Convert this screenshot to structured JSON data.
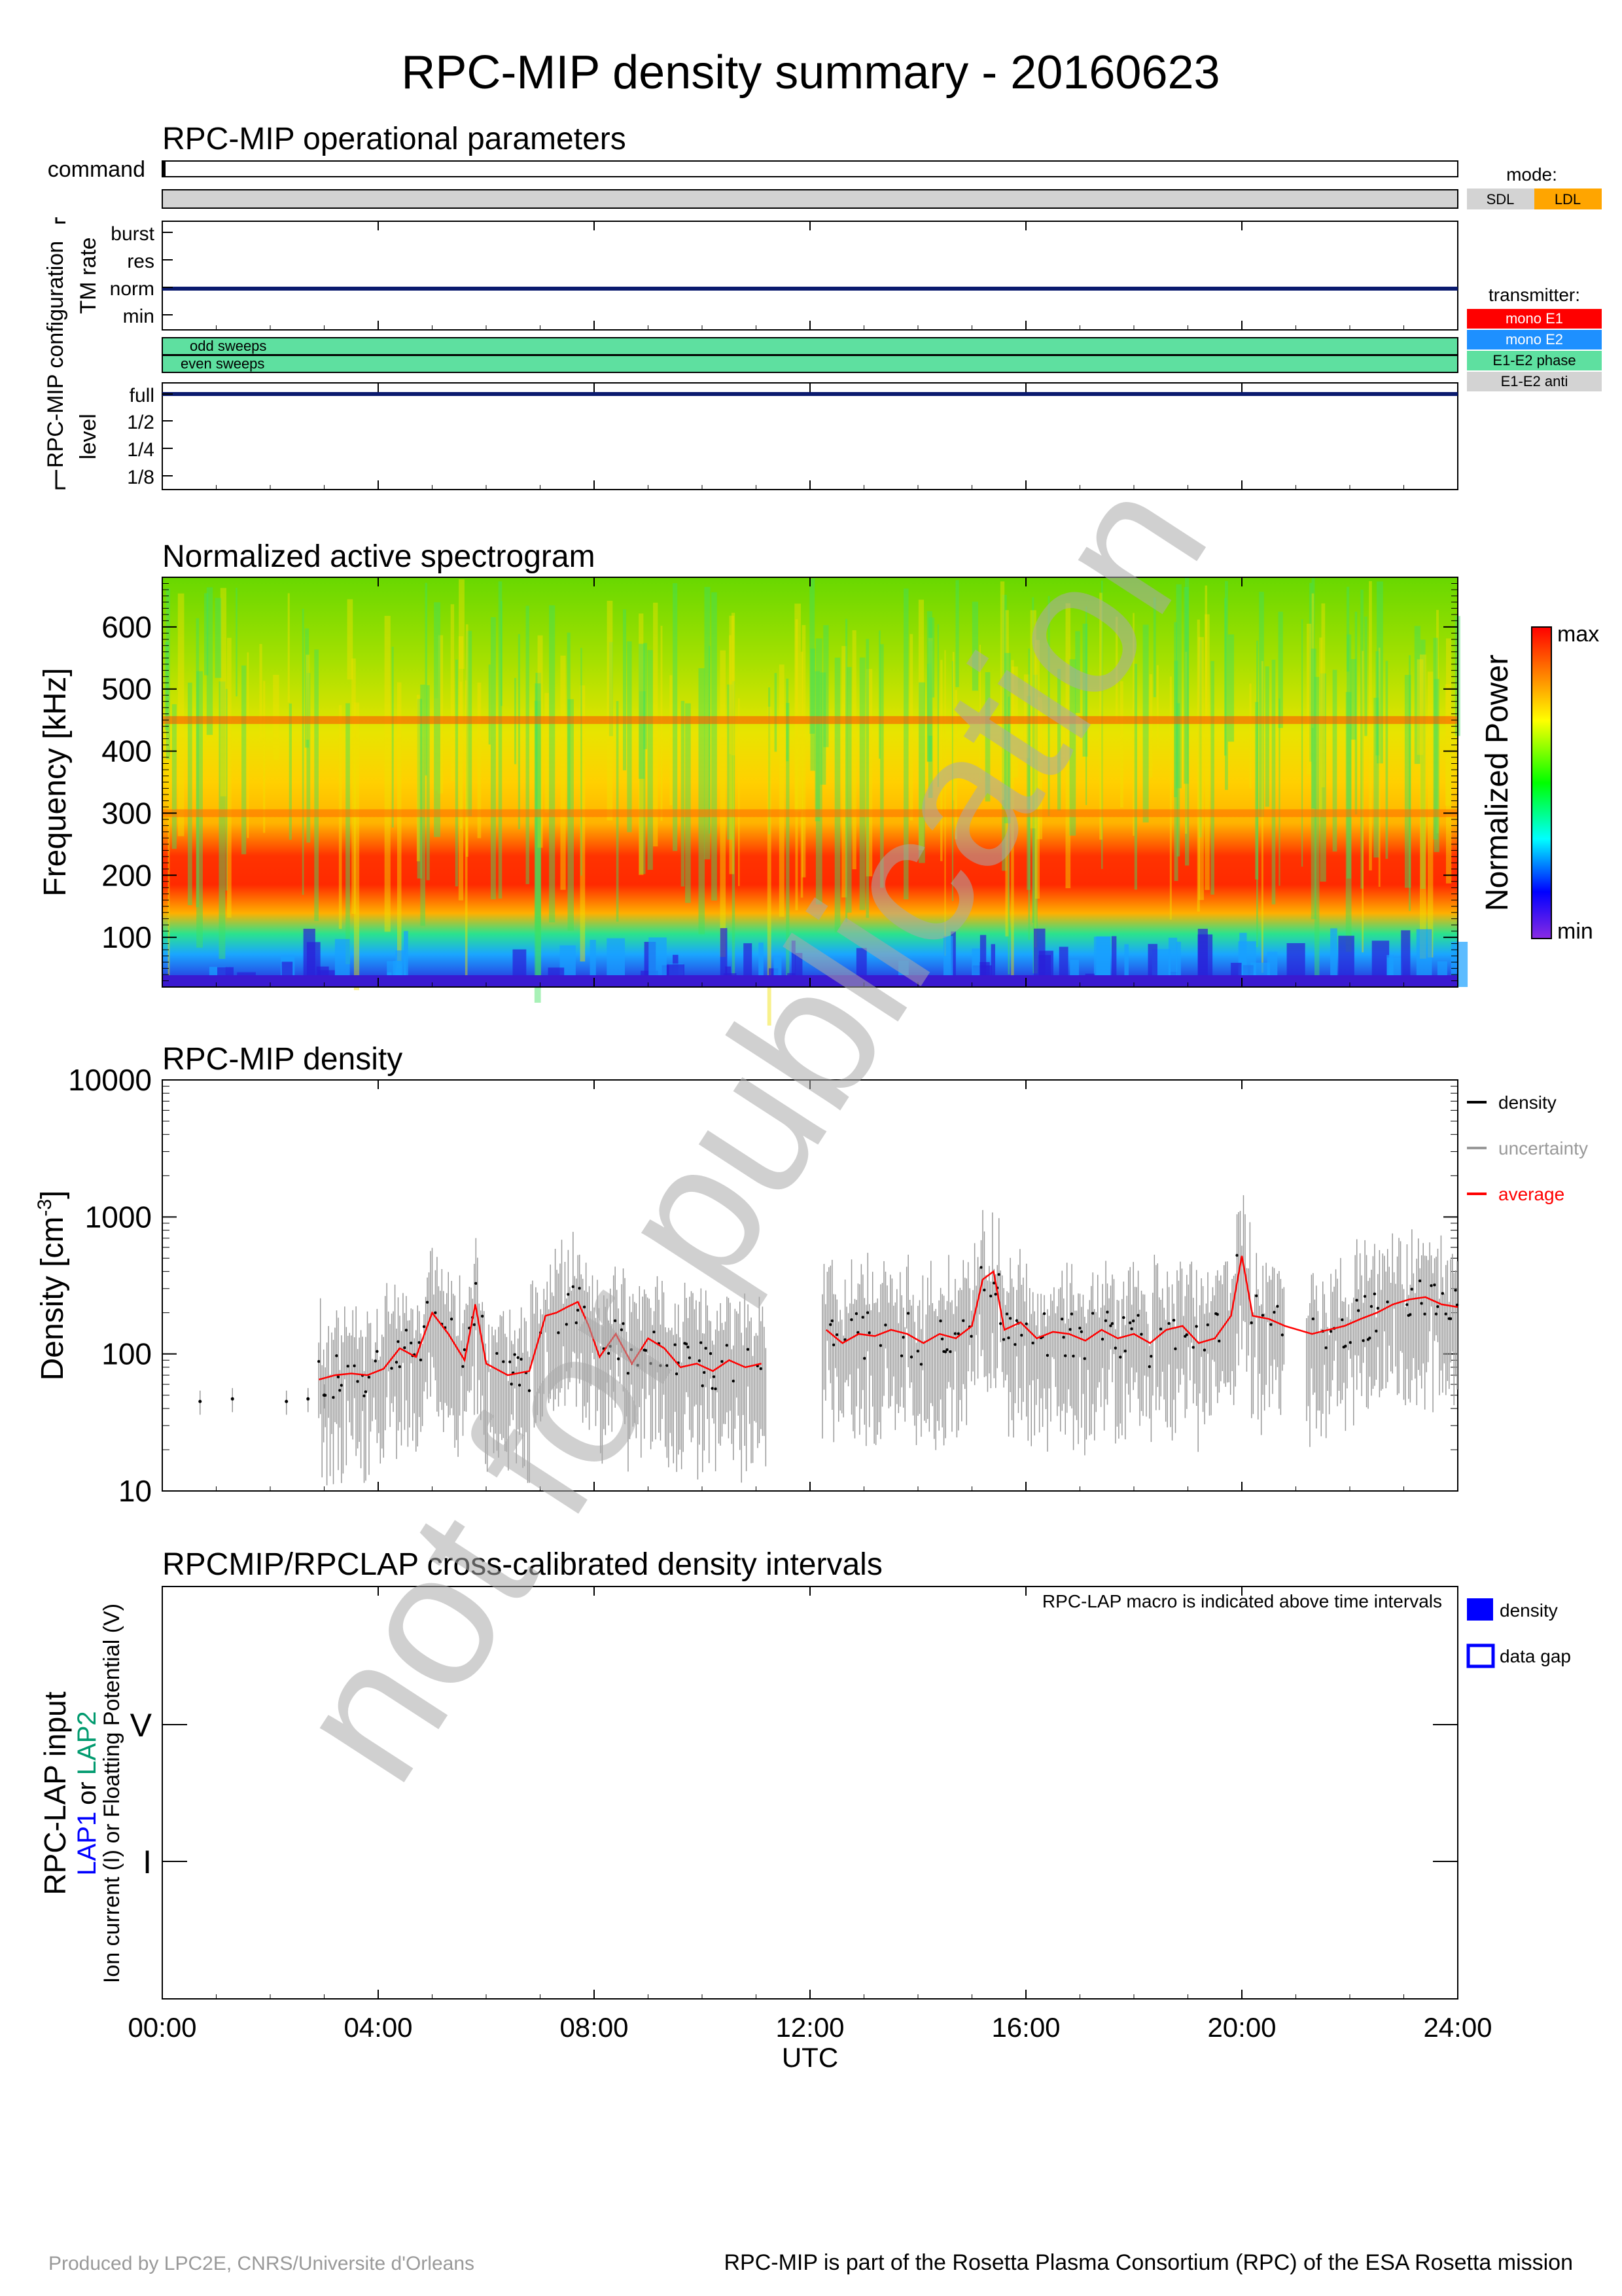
{
  "title": "RPC-MIP density summary - 20160623",
  "watermark": "not for publication",
  "footer": {
    "left": "Produced by LPC2E, CNRS/Universite d'Orleans",
    "right": "RPC-MIP is part of the Rosetta Plasma Consortium (RPC) of the ESA Rosetta mission"
  },
  "time_axis": {
    "ticks": [
      "00:00",
      "04:00",
      "08:00",
      "12:00",
      "16:00",
      "20:00",
      "24:00"
    ],
    "label": "UTC"
  },
  "panel1": {
    "title": "RPC-MIP operational parameters",
    "command_label": "command",
    "config_label": "RPC-MIP configuration",
    "tm_rate_label": "TM rate",
    "tm_levels": [
      "burst",
      "res",
      "norm",
      "min"
    ],
    "tm_rate_value": "norm",
    "sweeps": [
      "odd sweeps",
      "even sweeps"
    ],
    "level_label": "level",
    "levels": [
      "full",
      "1/2",
      "1/4",
      "1/8"
    ],
    "level_value": "full",
    "mode_legend": {
      "title": "mode:",
      "items": [
        {
          "label": "SDL",
          "color": "#d3d3d3"
        },
        {
          "label": "LDL",
          "color": "#ffa500"
        }
      ]
    },
    "transmitter_legend": {
      "title": "transmitter:",
      "items": [
        {
          "label": "mono E1",
          "color": "#ff0000",
          "text_color": "#ffffff"
        },
        {
          "label": "mono E2",
          "color": "#1e90ff",
          "text_color": "#ffffff"
        },
        {
          "label": "E1-E2 phase",
          "color": "#5ee0a0",
          "text_color": "#000000"
        },
        {
          "label": "E1-E2 anti",
          "color": "#d3d3d3",
          "text_color": "#000000"
        }
      ]
    },
    "mode_bar_color": "#d3d3d3",
    "sweep_bar_color": "#5ee0a0"
  },
  "panel2": {
    "title": "Normalized active spectrogram",
    "ylabel": "Frequency [kHz]",
    "yticks": [
      "100",
      "200",
      "300",
      "400",
      "500",
      "600"
    ],
    "colorbar_label": "Normalized Power",
    "colorbar_max": "max",
    "colorbar_min": "min"
  },
  "panel3": {
    "title": "RPC-MIP density",
    "ylabel": "Density [cm",
    "ylabel_exp": "-3",
    "ylabel_close": "]",
    "yticks": [
      "10",
      "100",
      "1000",
      "10000"
    ],
    "legend": [
      {
        "label": "density",
        "color": "#000000"
      },
      {
        "label": "uncertainty",
        "color": "#999999"
      },
      {
        "label": "average",
        "color": "#ff0000"
      }
    ]
  },
  "panel4": {
    "title": "RPCMIP/RPCLAP cross-calibrated density intervals",
    "note": "RPC-LAP macro is indicated above time intervals",
    "ylabel_main": "RPC-LAP input",
    "ylabel_lap1": "LAP1",
    "ylabel_or": "or",
    "ylabel_lap2": "LAP2",
    "ylabel_sub": "Ion current (I) or Floatting Potential (V)",
    "yticks": [
      "I",
      "V"
    ],
    "legend": [
      {
        "label": "density",
        "style": "filled",
        "color": "#0000ff"
      },
      {
        "label": "data gap",
        "style": "outline",
        "color": "#0000ff"
      }
    ]
  },
  "chart_data": [
    {
      "type": "heatmap",
      "title": "Normalized active spectrogram",
      "ylabel": "Frequency [kHz]",
      "xlabel": "UTC",
      "ylim": [
        20,
        680
      ],
      "xlim": [
        0,
        24
      ],
      "note": "Strong power bands near 150-200 kHz and faint bands near 300 kHz and 450 kHz; low power below ~80 kHz"
    },
    {
      "type": "scatter",
      "title": "RPC-MIP density",
      "ylabel": "Density [cm-3]",
      "xlabel": "UTC",
      "yscale": "log",
      "ylim": [
        10,
        10000
      ],
      "xlim": [
        0,
        24
      ],
      "series": [
        {
          "name": "average",
          "x": [
            2.9,
            3.2,
            3.5,
            3.8,
            4.1,
            4.4,
            4.7,
            5.0,
            5.3,
            5.6,
            5.8,
            6.0,
            6.4,
            6.8,
            7.1,
            7.3,
            7.5,
            7.7,
            7.9,
            8.1,
            8.4,
            8.7,
            9.0,
            9.3,
            9.6,
            9.9,
            10.2,
            10.5,
            10.8,
            11.1,
            12.3,
            12.6,
            12.9,
            13.2,
            13.5,
            13.8,
            14.1,
            14.4,
            14.7,
            15.0,
            15.2,
            15.4,
            15.6,
            15.9,
            16.2,
            16.5,
            16.8,
            17.1,
            17.4,
            17.7,
            18.0,
            18.3,
            18.6,
            18.9,
            19.2,
            19.5,
            19.8,
            20.0,
            20.2,
            20.5,
            20.8,
            21.3,
            21.6,
            21.9,
            22.2,
            22.5,
            22.8,
            23.1,
            23.4,
            23.7,
            24.0
          ],
          "values": [
            65,
            70,
            72,
            70,
            78,
            110,
            95,
            200,
            140,
            90,
            230,
            85,
            70,
            75,
            190,
            200,
            220,
            240,
            160,
            95,
            140,
            85,
            130,
            110,
            80,
            85,
            75,
            90,
            80,
            85,
            150,
            120,
            140,
            135,
            150,
            140,
            120,
            140,
            130,
            160,
            350,
            400,
            150,
            170,
            130,
            145,
            140,
            125,
            150,
            130,
            140,
            120,
            150,
            160,
            120,
            130,
            190,
            520,
            190,
            180,
            160,
            140,
            150,
            160,
            180,
            200,
            230,
            250,
            260,
            230,
            220
          ]
        },
        {
          "name": "density",
          "x": [
            0.7,
            1.3,
            2.3,
            2.7,
            3.0
          ],
          "values": [
            45,
            47,
            45,
            47,
            50
          ]
        }
      ]
    }
  ]
}
